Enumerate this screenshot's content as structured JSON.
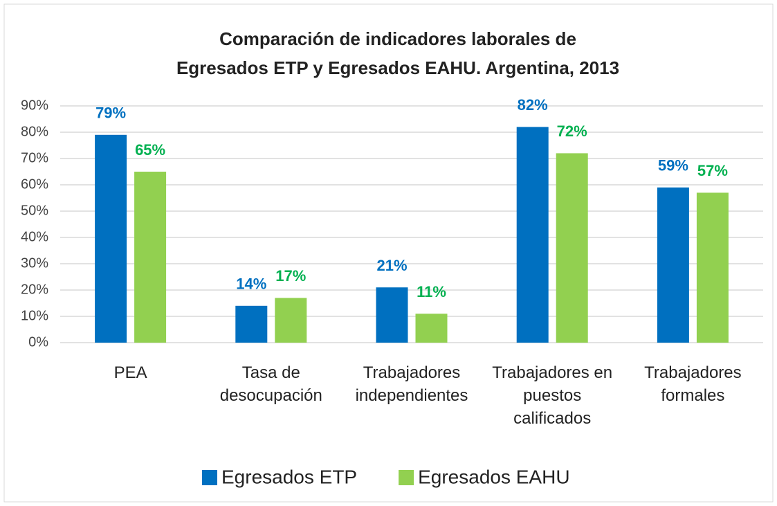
{
  "chart_data": {
    "type": "bar",
    "title": [
      "Comparación  de indicadores laborales de",
      "Egresados ETP y Egresados EAHU. Argentina, 2013"
    ],
    "categories": [
      "PEA",
      "Tasa de desocupación",
      "Trabajadores independientes",
      "Trabajadores en puestos calificados",
      "Trabajadores formales"
    ],
    "series": [
      {
        "name": "Egresados ETP",
        "color": "#0070c0",
        "label_color": "#0070c0",
        "values": [
          79,
          14,
          21,
          82,
          59
        ],
        "value_labels": [
          "79%",
          "14%",
          "21%",
          "82%",
          "59%"
        ]
      },
      {
        "name": "Egresados EAHU",
        "color": "#92d050",
        "label_color": "#00b050",
        "values": [
          65,
          17,
          11,
          72,
          57
        ],
        "value_labels": [
          "65%",
          "17%",
          "11%",
          "72%",
          "57%"
        ]
      }
    ],
    "ylim": [
      0,
      90
    ],
    "yticks": [
      {
        "value": 0,
        "label": "0%"
      },
      {
        "value": 10,
        "label": "10%"
      },
      {
        "value": 20,
        "label": "20%"
      },
      {
        "value": 30,
        "label": "30%"
      },
      {
        "value": 40,
        "label": "40%"
      },
      {
        "value": 50,
        "label": "50%"
      },
      {
        "value": 60,
        "label": "60%"
      },
      {
        "value": 70,
        "label": "70%"
      },
      {
        "value": 80,
        "label": "80%"
      },
      {
        "value": 90,
        "label": "90%"
      }
    ],
    "grid": true,
    "legend": "bottom"
  }
}
